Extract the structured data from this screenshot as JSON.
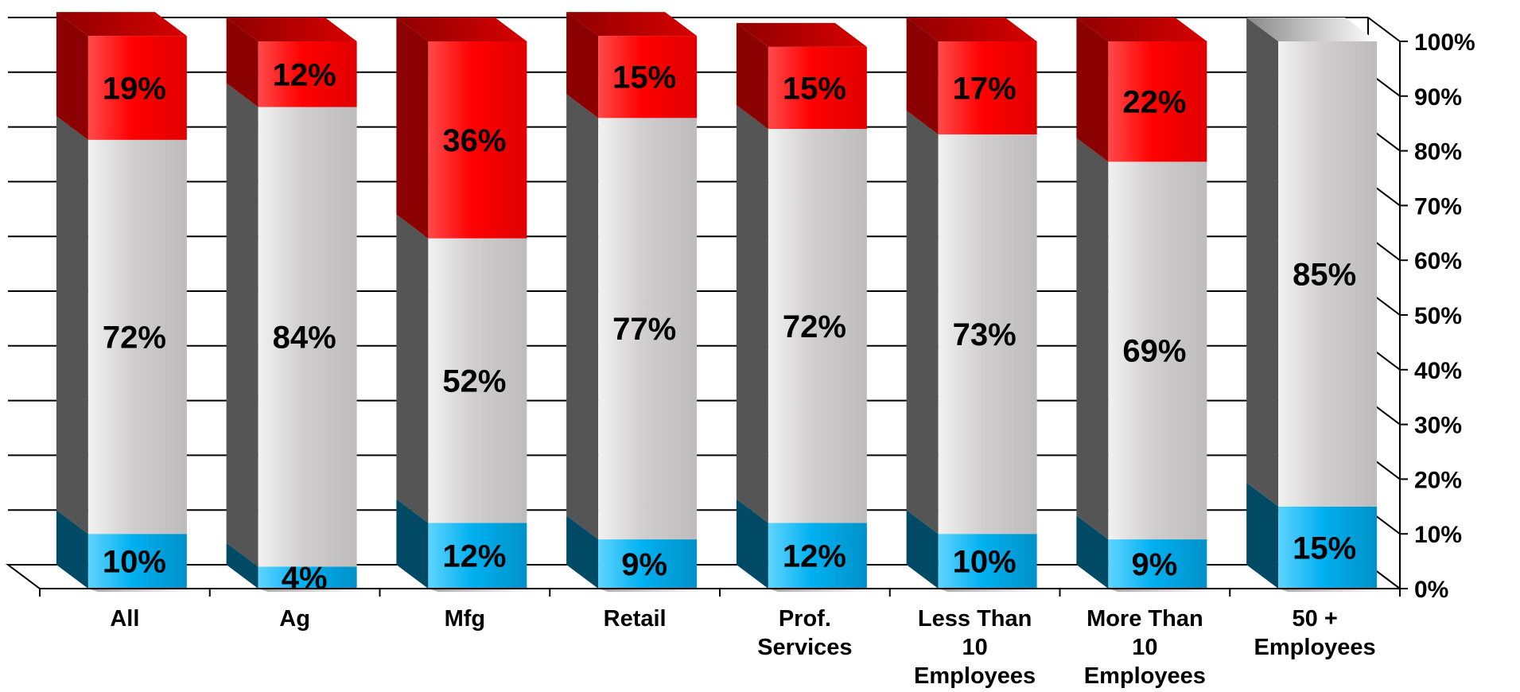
{
  "chart_data": {
    "type": "bar",
    "stacked": true,
    "percent_stacked": true,
    "three_d": true,
    "categories": [
      "All",
      "Ag",
      "Mfg",
      "Retail",
      "Prof. Services",
      "Less Than 10 Employees",
      "More Than 10 Employees",
      "50 + Employees"
    ],
    "category_lines": [
      [
        "All"
      ],
      [
        "Ag"
      ],
      [
        "Mfg"
      ],
      [
        "Retail"
      ],
      [
        "Prof.",
        "Services"
      ],
      [
        "Less Than",
        "10",
        "Employees"
      ],
      [
        "More Than",
        "10",
        "Employees"
      ],
      [
        "50 +",
        "Employees"
      ]
    ],
    "series": [
      {
        "color": "#00b0f0",
        "values": [
          10,
          4,
          12,
          9,
          12,
          10,
          9,
          15
        ],
        "labels": [
          "10%",
          "4%",
          "12%",
          "9%",
          "12%",
          "10%",
          "9%",
          "15%"
        ]
      },
      {
        "color": "#d0cece",
        "values": [
          72,
          84,
          52,
          77,
          72,
          73,
          69,
          85
        ],
        "labels": [
          "72%",
          "84%",
          "52%",
          "77%",
          "72%",
          "73%",
          "69%",
          "85%"
        ]
      },
      {
        "color": "#ff0000",
        "values": [
          19,
          12,
          36,
          15,
          15,
          17,
          22,
          0
        ],
        "labels": [
          "19%",
          "12%",
          "36%",
          "15%",
          "15%",
          "17%",
          "22%",
          ""
        ]
      }
    ],
    "yaxis": {
      "position": "right",
      "ylim": [
        0,
        100
      ],
      "ticks": [
        "0%",
        "10%",
        "20%",
        "30%",
        "40%",
        "50%",
        "60%",
        "70%",
        "80%",
        "90%",
        "100%"
      ]
    },
    "grid": true,
    "legend": "none"
  }
}
